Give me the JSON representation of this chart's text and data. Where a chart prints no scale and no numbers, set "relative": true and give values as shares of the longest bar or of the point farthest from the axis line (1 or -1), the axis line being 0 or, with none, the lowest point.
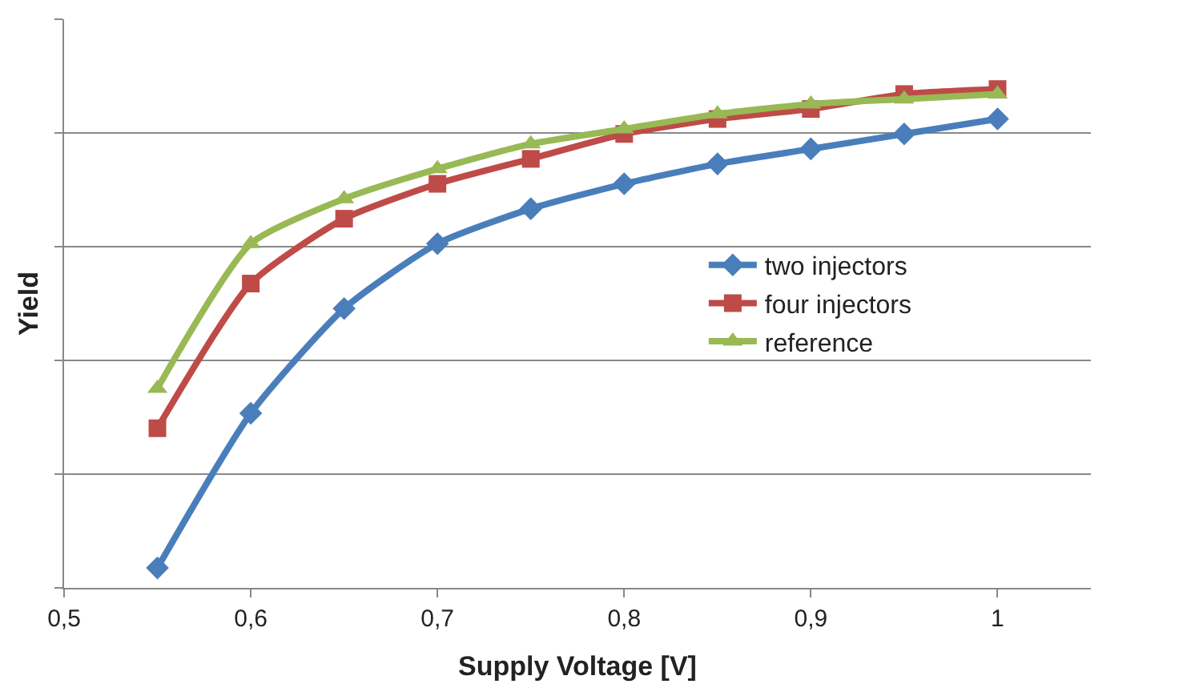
{
  "chart_data": {
    "type": "line",
    "relative": true,
    "xlabel": "Supply Voltage [V]",
    "ylabel": "Yield",
    "x": [
      0.55,
      0.6,
      0.65,
      0.7,
      0.75,
      0.8,
      0.85,
      0.9,
      0.95,
      1.0
    ],
    "xlim": [
      0.5,
      1.05
    ],
    "xticks": [
      {
        "value": 0.5,
        "label": "0,5"
      },
      {
        "value": 0.6,
        "label": "0,6"
      },
      {
        "value": 0.7,
        "label": "0,7"
      },
      {
        "value": 0.8,
        "label": "0,8"
      },
      {
        "value": 0.9,
        "label": "0,9"
      },
      {
        "value": 1.0,
        "label": "1"
      }
    ],
    "series": [
      {
        "name": "two injectors",
        "color": "#4a7ebb",
        "marker": "diamond",
        "values": [
          0.04,
          0.35,
          0.56,
          0.69,
          0.76,
          0.81,
          0.85,
          0.88,
          0.91,
          0.94
        ]
      },
      {
        "name": "four injectors",
        "color": "#be4b48",
        "marker": "square",
        "values": [
          0.32,
          0.61,
          0.74,
          0.81,
          0.86,
          0.91,
          0.94,
          0.96,
          0.99,
          1.0
        ]
      },
      {
        "name": "reference",
        "color": "#98b954",
        "marker": "triangle",
        "values": [
          0.4,
          0.69,
          0.78,
          0.84,
          0.89,
          0.92,
          0.95,
          0.97,
          0.98,
          0.99
        ]
      }
    ],
    "grid": "y",
    "legend": "right",
    "tick_labels": "x",
    "line_style": "solid"
  }
}
